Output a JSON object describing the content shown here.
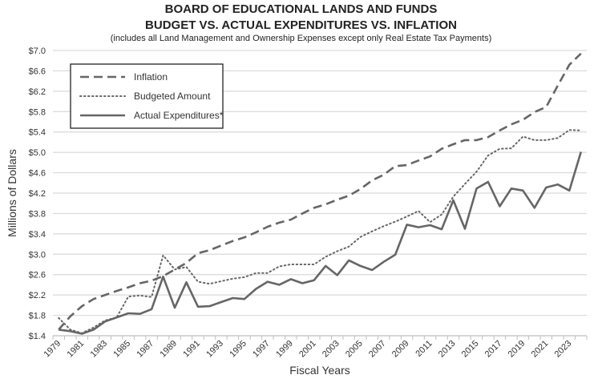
{
  "chart_data": {
    "type": "line",
    "title": "BOARD OF EDUCATIONAL LANDS AND FUNDS",
    "subtitle": "BUDGET VS. ACTUAL EXPENDITURES VS. INFLATION",
    "note": "(includes all Land Management and Ownership Expenses except only Real Estate Tax Payments)",
    "xlabel": "Fiscal Years",
    "ylabel": "Millions of Dollars",
    "ylim": [
      1.4,
      7.0
    ],
    "yticks": [
      "$1.4",
      "$1.8",
      "$2.2",
      "$2.6",
      "$3.0",
      "$3.4",
      "$3.8",
      "$4.2",
      "$4.6",
      "$5.0",
      "$5.4",
      "$5.8",
      "$6.2",
      "$6.6",
      "$7.0"
    ],
    "grid": true,
    "legend_position": "top-left",
    "x": [
      1979,
      1980,
      1981,
      1982,
      1983,
      1984,
      1985,
      1986,
      1987,
      1988,
      1989,
      1990,
      1991,
      1992,
      1993,
      1994,
      1995,
      1996,
      1997,
      1998,
      1999,
      2000,
      2001,
      2002,
      2003,
      2004,
      2005,
      2006,
      2007,
      2008,
      2009,
      2010,
      2011,
      2012,
      2013,
      2014,
      2015,
      2016,
      2017,
      2018,
      2019,
      2020,
      2021,
      2022,
      2023,
      2024
    ],
    "series": [
      {
        "name": "Inflation",
        "style": "dashed",
        "color": "#666666",
        "values": [
          1.52,
          1.78,
          1.98,
          2.12,
          2.2,
          2.28,
          2.35,
          2.43,
          2.48,
          2.57,
          2.7,
          2.83,
          3.02,
          3.08,
          3.17,
          3.26,
          3.33,
          3.43,
          3.54,
          3.62,
          3.68,
          3.8,
          3.91,
          3.98,
          4.07,
          4.15,
          4.28,
          4.45,
          4.56,
          4.73,
          4.75,
          4.84,
          4.92,
          5.07,
          5.16,
          5.24,
          5.24,
          5.3,
          5.43,
          5.55,
          5.64,
          5.79,
          5.89,
          6.31,
          6.72,
          6.94
        ]
      },
      {
        "name": "Budgeted Amount",
        "style": "dotted",
        "color": "#666666",
        "values": [
          1.75,
          1.52,
          1.45,
          1.56,
          1.7,
          1.76,
          2.17,
          2.19,
          2.16,
          2.98,
          2.7,
          2.75,
          2.46,
          2.42,
          2.47,
          2.52,
          2.55,
          2.63,
          2.63,
          2.76,
          2.8,
          2.8,
          2.8,
          2.95,
          3.06,
          3.15,
          3.34,
          3.45,
          3.55,
          3.64,
          3.74,
          3.85,
          3.63,
          3.78,
          4.13,
          4.38,
          4.62,
          4.94,
          5.07,
          5.08,
          5.31,
          5.24,
          5.24,
          5.28,
          5.44,
          5.43
        ]
      },
      {
        "name": "Actual Expenditures*",
        "style": "solid",
        "color": "#666666",
        "values": [
          1.52,
          1.49,
          1.44,
          1.52,
          1.68,
          1.76,
          1.84,
          1.83,
          1.92,
          2.56,
          1.95,
          2.45,
          1.97,
          1.98,
          2.06,
          2.14,
          2.12,
          2.32,
          2.46,
          2.4,
          2.51,
          2.43,
          2.49,
          2.77,
          2.59,
          2.88,
          2.77,
          2.69,
          2.85,
          2.99,
          3.58,
          3.53,
          3.57,
          3.49,
          4.06,
          3.5,
          4.29,
          4.42,
          3.94,
          4.29,
          4.25,
          3.91,
          4.31,
          4.37,
          4.25,
          5.01
        ]
      }
    ]
  }
}
